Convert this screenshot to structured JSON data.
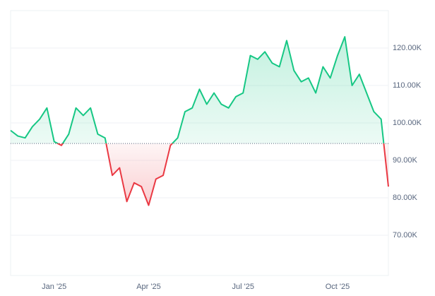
{
  "chart_data": {
    "type": "baseline-area",
    "categories": [
      null,
      null,
      null,
      null,
      null,
      null,
      "Jan '25",
      null,
      null,
      null,
      null,
      null,
      null,
      null,
      null,
      null,
      null,
      null,
      null,
      "Apr '25",
      null,
      null,
      null,
      null,
      null,
      null,
      null,
      null,
      null,
      null,
      null,
      null,
      "Jul '25",
      null,
      null,
      null,
      null,
      null,
      null,
      null,
      null,
      null,
      null,
      null,
      null,
      "Oct '25",
      null,
      null,
      null,
      null,
      null,
      null,
      null
    ],
    "values": [
      98000,
      96500,
      96000,
      99000,
      101000,
      104000,
      95000,
      94000,
      97000,
      104000,
      102000,
      104000,
      97000,
      96000,
      86000,
      88000,
      79000,
      84000,
      83000,
      78000,
      85000,
      86000,
      94000,
      96000,
      103000,
      104000,
      109000,
      105000,
      108000,
      105000,
      104000,
      107000,
      108000,
      118000,
      117000,
      119000,
      116000,
      115000,
      122000,
      114000,
      111000,
      112000,
      108000,
      115000,
      112000,
      118000,
      123000,
      110000,
      113000,
      108000,
      103000,
      101000,
      83000
    ],
    "baseline": 94500,
    "up_color": "#16c784",
    "down_color": "#ea3943",
    "ylim": [
      59250,
      130000
    ],
    "yticks": [
      {
        "value": 70000,
        "label": "70.00K"
      },
      {
        "value": 80000,
        "label": "80.00K"
      },
      {
        "value": 90000,
        "label": "90.00K"
      },
      {
        "value": 100000,
        "label": "100.00K"
      },
      {
        "value": 110000,
        "label": "110.00K"
      },
      {
        "value": 120000,
        "label": "120.00K"
      }
    ],
    "grid": true
  }
}
